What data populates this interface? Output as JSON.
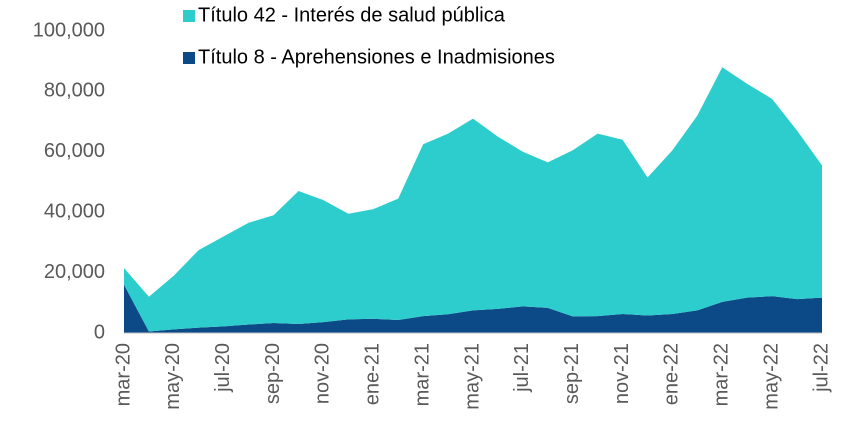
{
  "chart_data": {
    "type": "area",
    "stacked": true,
    "categories": [
      "mar-20",
      null,
      "may-20",
      null,
      "jul-20",
      null,
      "sep-20",
      null,
      "nov-20",
      null,
      "ene-21",
      null,
      "mar-21",
      null,
      "may-21",
      null,
      "jul-21",
      null,
      "sep-21",
      null,
      "nov-21",
      null,
      "ene-22",
      null,
      "mar-22",
      null,
      "may-22",
      null,
      "jul-22"
    ],
    "series": [
      {
        "name": "Título 42 - Interés de salud pública",
        "color": "#2ecdcd",
        "values": [
          5500,
          11500,
          17800,
          25700,
          29800,
          33700,
          35700,
          44000,
          40400,
          35000,
          36300,
          40200,
          56900,
          59800,
          63500,
          57000,
          51200,
          48200,
          55000,
          60400,
          57700,
          45700,
          54200,
          64500,
          77700,
          70800,
          65300,
          55800,
          43800
        ]
      },
      {
        "name": "Título 8 - Aprehensiones e Inadmisiones",
        "color": "#0b4a86",
        "values": [
          16000,
          500,
          1200,
          1800,
          2200,
          2800,
          3300,
          3000,
          3600,
          4500,
          4700,
          4300,
          5600,
          6200,
          7500,
          8000,
          8800,
          8300,
          5500,
          5600,
          6300,
          5800,
          6300,
          7500,
          10300,
          11700,
          12200,
          11200,
          11700
        ]
      }
    ],
    "ylim": [
      0,
      100000
    ],
    "yticks": [
      0,
      {
        "value": 20000,
        "label": "20,000"
      },
      {
        "value": 40000,
        "label": "40,000"
      },
      {
        "value": 60000,
        "label": "60,000"
      },
      {
        "value": 80000,
        "label": "80,000"
      },
      {
        "value": 100000,
        "label": "100,000"
      }
    ],
    "grid": false
  }
}
